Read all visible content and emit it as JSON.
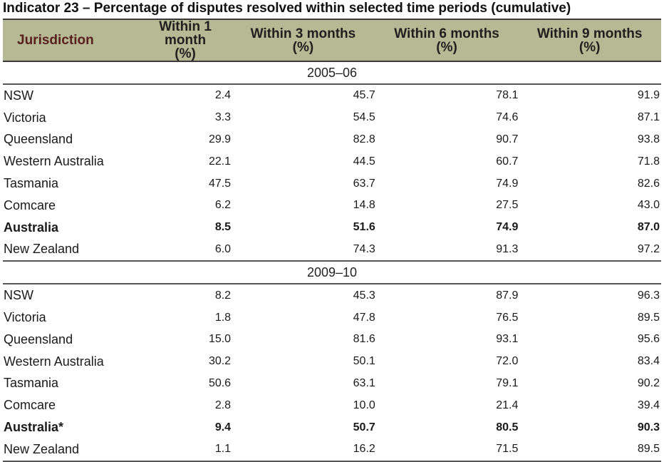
{
  "title": "Indicator 23 – Percentage of disputes resolved within selected time periods (cumulative)",
  "header": {
    "jurisdiction": "Jurisdiction",
    "cols": [
      {
        "line1": "Within 1 month",
        "line2": "(%)"
      },
      {
        "line1": "Within 3 months",
        "line2": "(%)"
      },
      {
        "line1": "Within 6 months",
        "line2": "(%)"
      },
      {
        "line1": "Within 9 months",
        "line2": "(%)"
      }
    ]
  },
  "periods": [
    {
      "label": "2005–06",
      "rows": [
        {
          "name": "NSW",
          "v": [
            "2.4",
            "45.7",
            "78.1",
            "91.9"
          ]
        },
        {
          "name": "Victoria",
          "v": [
            "3.3",
            "54.5",
            "74.6",
            "87.1"
          ]
        },
        {
          "name": "Queensland",
          "v": [
            "29.9",
            "82.8",
            "90.7",
            "93.8"
          ]
        },
        {
          "name": "Western Australia",
          "v": [
            "22.1",
            "44.5",
            "60.7",
            "71.8"
          ]
        },
        {
          "name": "Tasmania",
          "v": [
            "47.5",
            "63.7",
            "74.9",
            "82.6"
          ]
        },
        {
          "name": "Comcare",
          "v": [
            "6.2",
            "14.8",
            "27.5",
            "43.0"
          ]
        },
        {
          "name": "Australia",
          "v": [
            "8.5",
            "51.6",
            "74.9",
            "87.0"
          ]
        },
        {
          "name": "New Zealand",
          "v": [
            "6.0",
            "74.3",
            "91.3",
            "97.2"
          ]
        }
      ]
    },
    {
      "label": "2009–10",
      "rows": [
        {
          "name": "NSW",
          "v": [
            "8.2",
            "45.3",
            "87.9",
            "96.3"
          ]
        },
        {
          "name": "Victoria",
          "v": [
            "1.8",
            "47.8",
            "76.5",
            "89.5"
          ]
        },
        {
          "name": "Queensland",
          "v": [
            "15.0",
            "81.6",
            "93.1",
            "95.6"
          ]
        },
        {
          "name": "Western Australia",
          "v": [
            "30.2",
            "50.1",
            "72.0",
            "83.4"
          ]
        },
        {
          "name": "Tasmania",
          "v": [
            "50.6",
            "63.1",
            "79.1",
            "90.2"
          ]
        },
        {
          "name": "Comcare",
          "v": [
            "2.8",
            "10.0",
            "21.4",
            "39.4"
          ]
        },
        {
          "name": "Australia*",
          "v": [
            "9.4",
            "50.7",
            "80.5",
            "90.3"
          ]
        },
        {
          "name": "New Zealand",
          "v": [
            "1.1",
            "16.2",
            "71.5",
            "89.5"
          ]
        }
      ]
    }
  ],
  "colors": {
    "header_bg": "#b5b994",
    "rule": "#555555"
  }
}
